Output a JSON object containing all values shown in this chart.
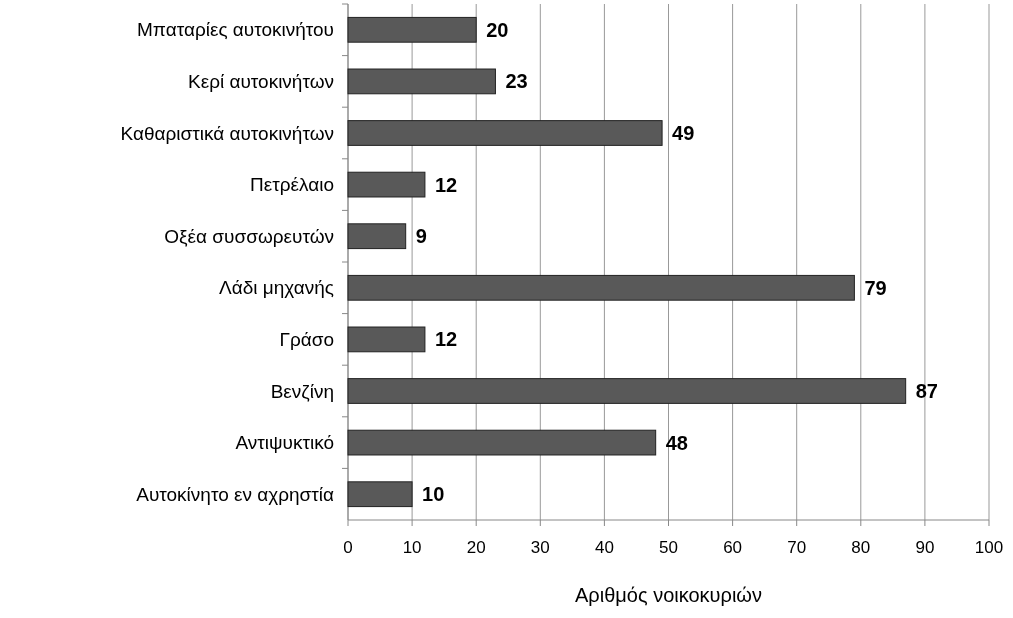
{
  "chart_data": {
    "type": "bar",
    "orientation": "horizontal",
    "xlabel": "Αριθμός νοικοκυριών",
    "categories": [
      "Μπαταρίες αυτοκινήτου",
      "Κερί αυτοκινήτων",
      "Καθαριστικά αυτοκινήτων",
      "Πετρέλαιο",
      "Οξέα συσσωρευτών",
      "Λάδι μηχανής",
      "Γράσο",
      "Βενζίνη",
      "Αντιψυκτικό",
      "Αυτοκίνητο εν αχρηστία"
    ],
    "values": [
      20,
      23,
      49,
      12,
      9,
      79,
      12,
      87,
      48,
      10
    ],
    "color": "#595959",
    "xlim": [
      0,
      100
    ],
    "xticks": [
      0,
      10,
      20,
      30,
      40,
      50,
      60,
      70,
      80,
      90,
      100
    ],
    "grid": "x",
    "data_labels": true
  }
}
